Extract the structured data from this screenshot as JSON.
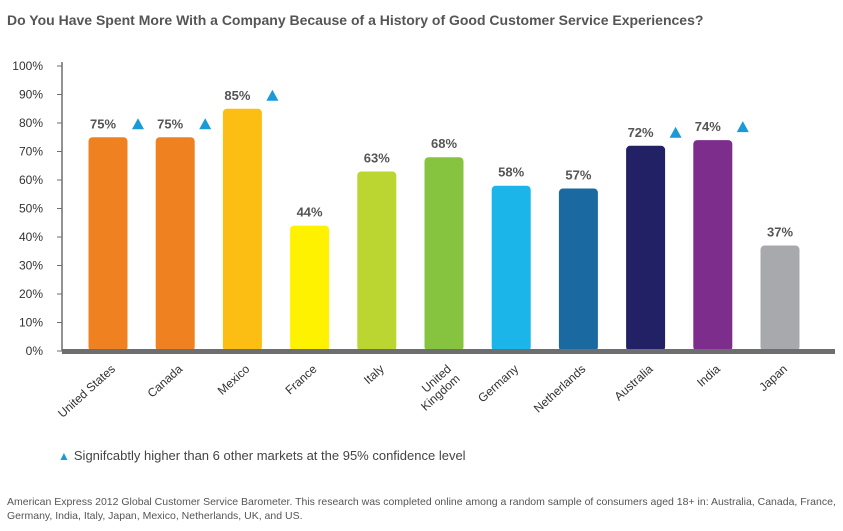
{
  "chart_data": {
    "type": "bar",
    "title": "Do You Have Spent More With a Company Because of a History of Good Customer Service Experiences?",
    "categories": [
      "United States",
      "Canada",
      "Mexico",
      "France",
      "Italy",
      "United Kingdom",
      "Germany",
      "Netherlands",
      "Australia",
      "India",
      "Japan"
    ],
    "category_lines": [
      [
        "United States"
      ],
      [
        "Canada"
      ],
      [
        "Mexico"
      ],
      [
        "France"
      ],
      [
        "Italy"
      ],
      [
        "United",
        "Kingdom"
      ],
      [
        "Germany"
      ],
      [
        "Netherlands"
      ],
      [
        "Australia"
      ],
      [
        "India"
      ],
      [
        "Japan"
      ]
    ],
    "values": [
      75,
      75,
      85,
      44,
      63,
      68,
      58,
      57,
      72,
      74,
      37
    ],
    "value_labels": [
      "75%",
      "75%",
      "85%",
      "44%",
      "63%",
      "68%",
      "58%",
      "57%",
      "72%",
      "74%",
      "37%"
    ],
    "colors": [
      "#f08121",
      "#f08121",
      "#fcbe12",
      "#fff200",
      "#bcd631",
      "#86c440",
      "#1cb5e9",
      "#1a6aa1",
      "#232166",
      "#7d2d8c",
      "#a7a9ac"
    ],
    "significant": [
      true,
      true,
      true,
      false,
      false,
      false,
      false,
      false,
      true,
      true,
      false
    ],
    "yticks": [
      "100%",
      "90%",
      "80%",
      "70%",
      "60%",
      "50%",
      "40%",
      "30%",
      "20%",
      "10%",
      "0%"
    ],
    "ylim": [
      0,
      100
    ],
    "xlabel": "",
    "ylabel": "",
    "marker_color": "#1a9ad6",
    "axis_color": "#6d6e71"
  },
  "legend": {
    "marker": "▲",
    "text": "Signifcabtly higher than 6 other markets at the 95% confidence level"
  },
  "footnote": "American Express 2012 Global Customer Service Barometer. This research was completed online among a random sample of consumers aged 18+ in: Australia, Canada, France, Germany, India, Italy, Japan, Mexico, Netherlands, UK, and US."
}
